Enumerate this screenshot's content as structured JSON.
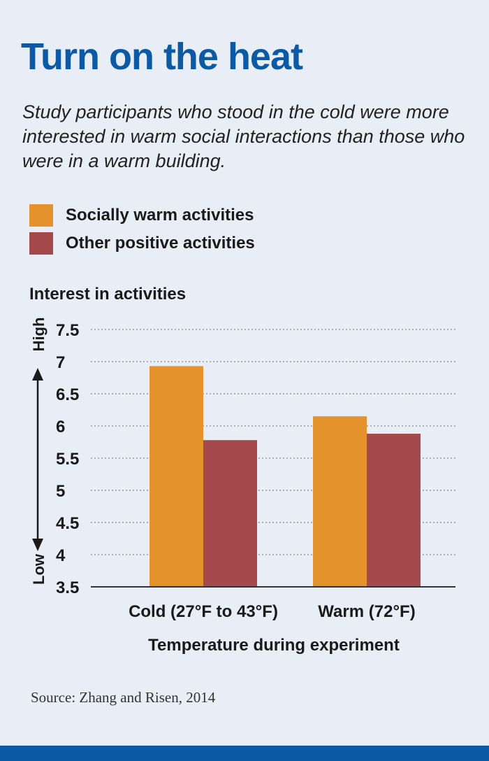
{
  "title": "Turn on the heat",
  "subtitle": "Study participants who stood in the cold were more interested in warm social interactions than those who were in a warm building.",
  "source": "Source: Zhang and Risen, 2014",
  "colors": {
    "accent": "#0b5aa3",
    "socially_warm": "#e4932c",
    "other_positive": "#a44a4c",
    "gridline": "#9a9a9a",
    "background": "#e9edf5"
  },
  "chart_data": {
    "type": "bar",
    "title": "Interest in activities",
    "ylabel_high": "High",
    "ylabel_low": "Low",
    "xlabel": "Temperature during experiment",
    "categories": [
      "Cold (27°F to 43°F)",
      "Warm (72°F)"
    ],
    "series": [
      {
        "name": "Socially warm activities",
        "values": [
          6.93,
          6.15
        ],
        "color": "#e4932c"
      },
      {
        "name": "Other positive activities",
        "values": [
          5.78,
          5.88
        ],
        "color": "#a44a4c"
      }
    ],
    "ylim": [
      3.5,
      7.5
    ],
    "yticks": [
      "7.5",
      "7",
      "6.5",
      "6",
      "5.5",
      "5",
      "4.5",
      "4",
      "3.5"
    ],
    "grid": true,
    "legend_position": "top-left"
  }
}
